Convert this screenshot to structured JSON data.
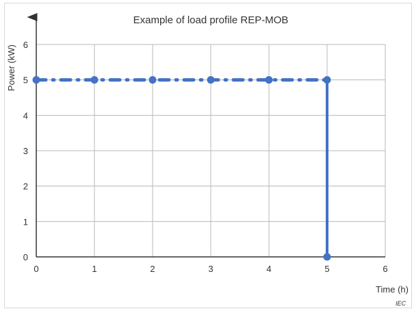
{
  "chart_data": {
    "type": "line",
    "title": "Example of load profile REP-MOB",
    "xlabel": "Time (h)",
    "ylabel": "Power  (kW)",
    "xlim": [
      0,
      6
    ],
    "ylim": [
      0,
      6
    ],
    "x_ticks": [
      "0",
      "1",
      "2",
      "3",
      "4",
      "5",
      "6"
    ],
    "y_ticks": [
      "0",
      "1",
      "2",
      "3",
      "4",
      "5",
      "6"
    ],
    "grid": true,
    "series": [
      {
        "style": "dash-dot",
        "points": [
          {
            "x": 0,
            "y": 5
          },
          {
            "x": 1,
            "y": 5
          },
          {
            "x": 2,
            "y": 5
          },
          {
            "x": 3,
            "y": 5
          },
          {
            "x": 4,
            "y": 5
          },
          {
            "x": 5,
            "y": 5
          }
        ]
      },
      {
        "style": "solid",
        "points": [
          {
            "x": 5,
            "y": 5
          },
          {
            "x": 5,
            "y": 0
          }
        ]
      }
    ],
    "line_color": "#4472c4",
    "grid_color": "#b8b8b8",
    "axis_color": "#333333",
    "watermark": "IEC"
  }
}
